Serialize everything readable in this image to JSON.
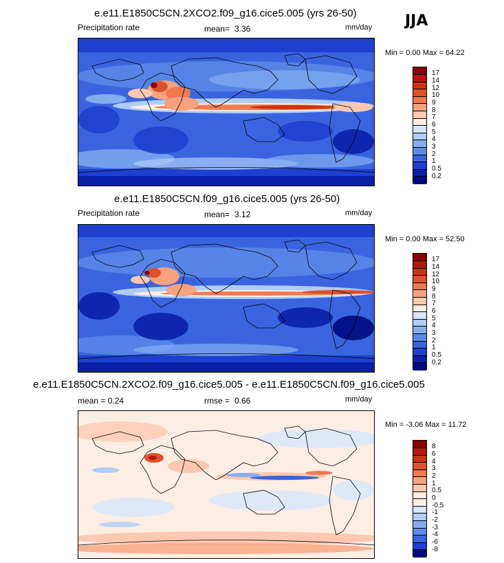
{
  "season": "JJA",
  "panels": [
    {
      "title": "e.e11.E1850C5CN.2XCO2.f09_g16.cice5.005 (yrs 26-50)",
      "left_label": "Precipitation rate",
      "stat1_label": "mean=",
      "stat1_value": "3.36",
      "units": "mm/day",
      "minmax": "Min =   0.00 Max =  64.22",
      "colorbar_labels": [
        "17",
        "14",
        "12",
        "10",
        "9",
        "8",
        "7",
        "6",
        "5",
        "4",
        "3",
        "2",
        "1",
        "0.5",
        "0.2"
      ]
    },
    {
      "title": "e.e11.E1850C5CN.f09_g16.cice5.005 (yrs 26-50)",
      "left_label": "Precipitation rate",
      "stat1_label": "mean=",
      "stat1_value": "3.12",
      "units": "mm/day",
      "minmax": "Min =   0.00 Max =  52.50",
      "colorbar_labels": [
        "17",
        "14",
        "12",
        "10",
        "9",
        "8",
        "7",
        "6",
        "5",
        "4",
        "3",
        "2",
        "1",
        "0.5",
        "0.2"
      ]
    },
    {
      "title": "e.e11.E1850C5CN.2XCO2.f09_g16.cice5.005 - e.e11.E1850C5CN.f09_g16.cice5.005",
      "left_label": "mean =   0.24",
      "stat1_label": "rmse =",
      "stat1_value": "0.66",
      "units": "mm/day",
      "minmax": "Min =  -3.06 Max =  11.72",
      "colorbar_labels": [
        "8",
        "6",
        "4",
        "3",
        "2",
        "1",
        "0.5",
        "0",
        "-0.5",
        "-1",
        "-2",
        "-3",
        "-4",
        "-6",
        "-8"
      ]
    }
  ],
  "colors": {
    "abs_scale": [
      "#8b0000",
      "#b2180c",
      "#cc3311",
      "#e0502a",
      "#f07a50",
      "#f7a27e",
      "#fcc9b0",
      "#fdeee4",
      "#d7e6fb",
      "#aecdf7",
      "#84aef0",
      "#5b8ae8",
      "#3a64df",
      "#1e3fcf",
      "#0a1fa8",
      "#000a80"
    ],
    "diff_scale": [
      "#8b0000",
      "#b2180c",
      "#cc3311",
      "#e0502a",
      "#f07a50",
      "#f7a27e",
      "#fcc9b0",
      "#fdeee4",
      "#fdeee4",
      "#d7e6fb",
      "#aecdf7",
      "#84aef0",
      "#5b8ae8",
      "#3a64df",
      "#1e3fcf",
      "#000a80"
    ]
  }
}
